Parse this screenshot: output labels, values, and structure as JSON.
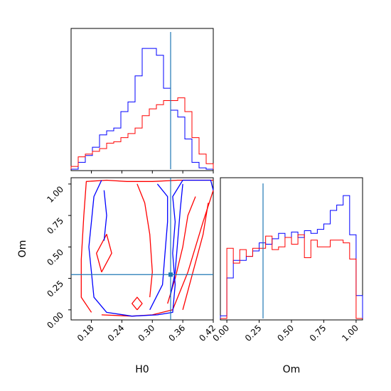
{
  "chart_data": [
    {
      "type": "histogram",
      "panel": "H0 marginal",
      "truth_line": 0.336,
      "xlim": [
        0.14,
        0.42
      ],
      "ylim": [
        0,
        1
      ],
      "bin_edges": [
        0.14,
        0.154,
        0.168,
        0.182,
        0.196,
        0.21,
        0.224,
        0.238,
        0.252,
        0.266,
        0.28,
        0.294,
        0.308,
        0.322,
        0.336,
        0.35,
        0.364,
        0.378,
        0.392,
        0.406,
        0.42
      ],
      "series": [
        {
          "color": "#0000ff",
          "values": [
            0.0,
            0.05,
            0.1,
            0.16,
            0.25,
            0.28,
            0.3,
            0.42,
            0.49,
            0.68,
            0.88,
            0.88,
            0.83,
            0.59,
            0.43,
            0.38,
            0.22,
            0.05,
            0.01,
            0.0
          ]
        },
        {
          "color": "#ff0000",
          "values": [
            0.02,
            0.09,
            0.11,
            0.13,
            0.15,
            0.19,
            0.2,
            0.23,
            0.26,
            0.3,
            0.39,
            0.44,
            0.47,
            0.5,
            0.5,
            0.52,
            0.42,
            0.23,
            0.11,
            0.04
          ]
        }
      ]
    },
    {
      "type": "contour",
      "panel": "H0 vs Om",
      "xlabel": "H0",
      "ylabel": "Om",
      "xlim": [
        0.14,
        0.42
      ],
      "ylim": [
        -0.08,
        1.05
      ],
      "xticks": [
        "0.18",
        "0.24",
        "0.30",
        "0.36",
        "0.42"
      ],
      "xtick_values": [
        0.18,
        0.24,
        0.3,
        0.36,
        0.42
      ],
      "yticks": [
        "0.00",
        "0.25",
        "0.50",
        "0.75",
        "1.00"
      ],
      "ytick_values": [
        0.0,
        0.25,
        0.5,
        0.75,
        1.0
      ],
      "truth": {
        "H0": 0.336,
        "Om": 0.28
      },
      "series": [
        {
          "color": "#ff0000",
          "contours": [
            [
              [
                0.18,
                -0.02
              ],
              [
                0.16,
                0.1
              ],
              [
                0.16,
                0.4
              ],
              [
                0.165,
                0.75
              ],
              [
                0.17,
                1.02
              ],
              [
                0.21,
                1.03
              ],
              [
                0.25,
                1.02
              ],
              [
                0.3,
                1.02
              ],
              [
                0.35,
                1.03
              ],
              [
                0.42,
                1.03
              ]
            ],
            [
              [
                0.2,
                -0.04
              ],
              [
                0.26,
                -0.05
              ],
              [
                0.3,
                -0.04
              ],
              [
                0.34,
                0.0
              ],
              [
                0.37,
                0.3
              ],
              [
                0.4,
                0.7
              ],
              [
                0.42,
                0.95
              ]
            ],
            [
              [
                0.36,
                0.0
              ],
              [
                0.38,
                0.3
              ],
              [
                0.4,
                0.6
              ],
              [
                0.41,
                0.85
              ]
            ],
            [
              [
                0.295,
                0.1
              ],
              [
                0.3,
                0.3
              ],
              [
                0.295,
                0.6
              ],
              [
                0.285,
                0.85
              ],
              [
                0.27,
                1.0
              ]
            ],
            [
              [
                0.33,
                0.05
              ],
              [
                0.345,
                0.25
              ],
              [
                0.36,
                0.5
              ],
              [
                0.37,
                0.75
              ],
              [
                0.385,
                0.9
              ]
            ],
            [
              [
                0.27,
                0.0
              ],
              [
                0.28,
                0.05
              ],
              [
                0.27,
                0.1
              ],
              [
                0.26,
                0.05
              ],
              [
                0.27,
                0.0
              ]
            ],
            [
              [
                0.2,
                0.3
              ],
              [
                0.22,
                0.45
              ],
              [
                0.21,
                0.6
              ],
              [
                0.19,
                0.45
              ],
              [
                0.2,
                0.3
              ]
            ]
          ]
        },
        {
          "color": "#0000ff",
          "contours": [
            [
              [
                0.2,
                1.03
              ],
              [
                0.185,
                0.9
              ],
              [
                0.18,
                0.7
              ],
              [
                0.175,
                0.5
              ],
              [
                0.18,
                0.3
              ],
              [
                0.185,
                0.1
              ],
              [
                0.21,
                -0.02
              ],
              [
                0.26,
                -0.05
              ],
              [
                0.31,
                -0.04
              ],
              [
                0.34,
                -0.02
              ],
              [
                0.345,
                0.2
              ],
              [
                0.34,
                0.45
              ],
              [
                0.345,
                0.7
              ],
              [
                0.34,
                0.9
              ],
              [
                0.36,
                1.03
              ],
              [
                0.415,
                1.03
              ],
              [
                0.42,
                0.95
              ]
            ],
            [
              [
                0.205,
                0.95
              ],
              [
                0.21,
                0.75
              ],
              [
                0.205,
                0.55
              ]
            ],
            [
              [
                0.295,
                0.0
              ],
              [
                0.32,
                0.2
              ],
              [
                0.325,
                0.45
              ],
              [
                0.33,
                0.7
              ],
              [
                0.33,
                0.9
              ],
              [
                0.31,
                1.0
              ]
            ],
            [
              [
                0.335,
                0.1
              ],
              [
                0.345,
                0.3
              ],
              [
                0.35,
                0.55
              ],
              [
                0.355,
                0.8
              ],
              [
                0.36,
                1.0
              ]
            ]
          ]
        }
      ]
    },
    {
      "type": "histogram",
      "panel": "Om marginal",
      "xlabel": "Om",
      "truth_line": 0.28,
      "xlim": [
        -0.05,
        1.05
      ],
      "ylim": [
        0,
        1
      ],
      "xticks": [
        "0.00",
        "0.25",
        "0.50",
        "0.75",
        "1.00"
      ],
      "xtick_values": [
        0.0,
        0.25,
        0.5,
        0.75,
        1.0
      ],
      "bin_edges": [
        -0.05,
        0.0,
        0.05,
        0.1,
        0.15,
        0.2,
        0.25,
        0.3,
        0.35,
        0.4,
        0.45,
        0.5,
        0.55,
        0.6,
        0.65,
        0.7,
        0.75,
        0.8,
        0.85,
        0.9,
        0.95,
        1.0,
        1.05
      ],
      "series": [
        {
          "color": "#0000ff",
          "values": [
            0.02,
            0.3,
            0.43,
            0.43,
            0.46,
            0.5,
            0.56,
            0.55,
            0.59,
            0.63,
            0.6,
            0.64,
            0.6,
            0.65,
            0.63,
            0.66,
            0.7,
            0.8,
            0.84,
            0.91,
            0.62,
            0.17
          ]
        },
        {
          "color": "#ff0000",
          "values": [
            0.0,
            0.52,
            0.41,
            0.51,
            0.46,
            0.52,
            0.52,
            0.61,
            0.51,
            0.53,
            0.6,
            0.55,
            0.62,
            0.45,
            0.58,
            0.53,
            0.53,
            0.58,
            0.58,
            0.56,
            0.44,
            0.0
          ]
        }
      ]
    }
  ]
}
